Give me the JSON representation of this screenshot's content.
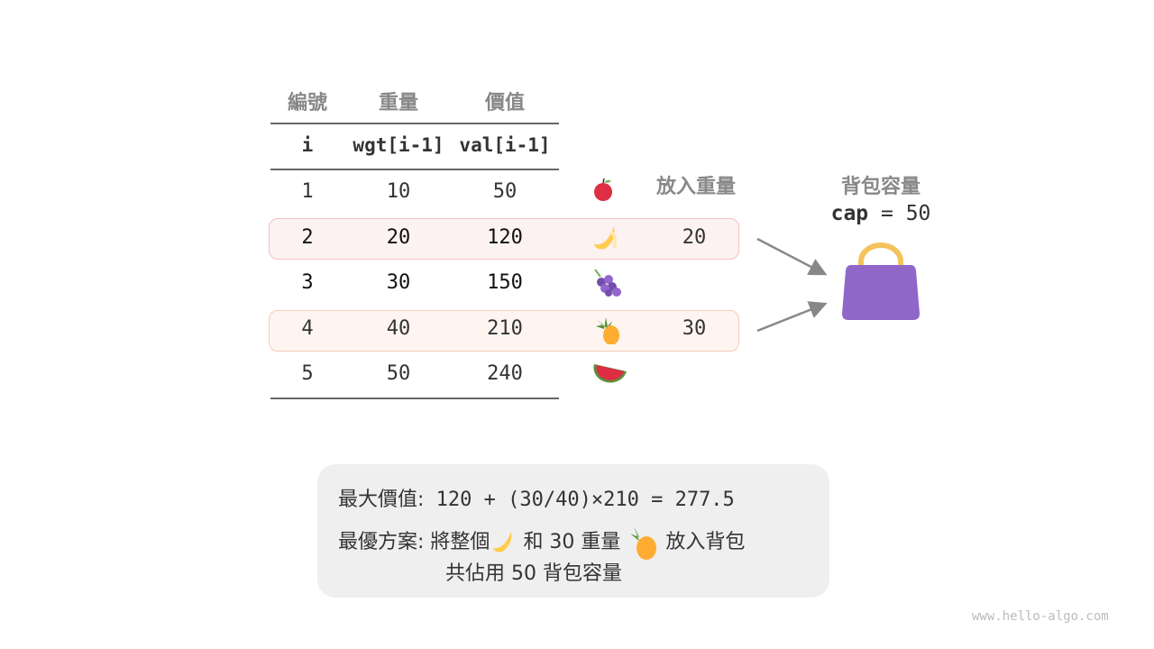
{
  "table": {
    "headers_zh": [
      "編號",
      "重量",
      "價值"
    ],
    "headers_code": [
      "i",
      "wgt[i-1]",
      "val[i-1]"
    ],
    "rows": [
      {
        "i": "1",
        "wgt": "10",
        "val": "50",
        "item": "apple-icon",
        "put": ""
      },
      {
        "i": "2",
        "wgt": "20",
        "val": "120",
        "item": "banana-icon",
        "put": "20"
      },
      {
        "i": "3",
        "wgt": "30",
        "val": "150",
        "item": "grapes-icon",
        "put": ""
      },
      {
        "i": "4",
        "wgt": "40",
        "val": "210",
        "item": "pineapple-icon",
        "put": "30"
      },
      {
        "i": "5",
        "wgt": "50",
        "val": "240",
        "item": "watermelon-icon",
        "put": ""
      }
    ],
    "put_weight_label": "放入重量"
  },
  "bag": {
    "title": "背包容量",
    "cap_label": "cap",
    "cap_rest": " = 50",
    "color": "#9066c9"
  },
  "summary": {
    "max_label": "最大價值:",
    "max_expr": "120 + (30/40)×210 = 277.5",
    "best_label": "最優方案:",
    "best_1": "將整個",
    "best_2": "和 30 重量",
    "best_3": "放入背包",
    "best_line2": "共佔用 50 背包容量"
  },
  "watermark": "www.hello-algo.com",
  "colors": {
    "row2_bg": "#fdf2f2",
    "row4_bg": "#fef5f1"
  }
}
